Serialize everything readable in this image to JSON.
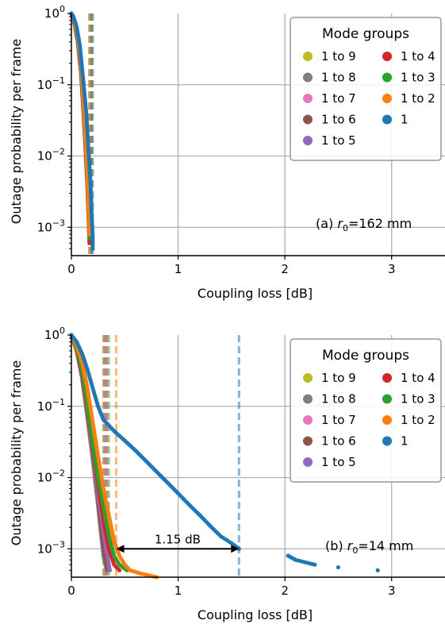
{
  "chart_data": [
    {
      "type": "scatter",
      "panel_label": "(a)",
      "annotation": {
        "prefix": "(a) ",
        "var": "r",
        "sub": "0",
        "suffix": "=162 mm"
      },
      "xlabel": "Coupling loss [dB]",
      "ylabel": "Outage probability per frame",
      "xlim": [
        0,
        3.5
      ],
      "ylim": [
        0.0004,
        1
      ],
      "yscale": "log",
      "grid": true,
      "legend_title": "Mode groups",
      "legend_position": "top-right",
      "x_ticks": [
        "0",
        "1",
        "2",
        "3"
      ],
      "y_ticks": [
        {
          "base": "10",
          "exp": "0",
          "v": 1
        },
        {
          "base": "10",
          "exp": "−1",
          "v": 0.1
        },
        {
          "base": "10",
          "exp": "−2",
          "v": 0.01
        },
        {
          "base": "10",
          "exp": "−3",
          "v": 0.001
        }
      ],
      "series": [
        {
          "name": "1 to 9",
          "color": "#bcbd22",
          "threshold": 0.17,
          "points": [
            [
              0.0,
              1.0
            ],
            [
              0.03,
              0.7
            ],
            [
              0.06,
              0.4
            ],
            [
              0.09,
              0.15
            ],
            [
              0.11,
              0.05
            ],
            [
              0.13,
              0.015
            ],
            [
              0.15,
              0.004
            ],
            [
              0.16,
              0.0015
            ],
            [
              0.17,
              0.0006
            ]
          ]
        },
        {
          "name": "1 to 8",
          "color": "#7f7f7f",
          "threshold": 0.17,
          "points": [
            [
              0.0,
              1.0
            ],
            [
              0.03,
              0.7
            ],
            [
              0.06,
              0.4
            ],
            [
              0.09,
              0.15
            ],
            [
              0.11,
              0.05
            ],
            [
              0.13,
              0.015
            ],
            [
              0.15,
              0.004
            ],
            [
              0.16,
              0.0015
            ],
            [
              0.17,
              0.0006
            ]
          ]
        },
        {
          "name": "1 to 7",
          "color": "#e377c2",
          "threshold": 0.17,
          "points": [
            [
              0.0,
              1.0
            ],
            [
              0.03,
              0.7
            ],
            [
              0.06,
              0.4
            ],
            [
              0.09,
              0.15
            ],
            [
              0.11,
              0.05
            ],
            [
              0.13,
              0.015
            ],
            [
              0.15,
              0.004
            ],
            [
              0.16,
              0.0015
            ],
            [
              0.17,
              0.0006
            ]
          ]
        },
        {
          "name": "1 to 6",
          "color": "#8c564b",
          "threshold": 0.17,
          "points": [
            [
              0.0,
              1.0
            ],
            [
              0.03,
              0.7
            ],
            [
              0.06,
              0.4
            ],
            [
              0.09,
              0.15
            ],
            [
              0.11,
              0.05
            ],
            [
              0.13,
              0.015
            ],
            [
              0.15,
              0.004
            ],
            [
              0.16,
              0.0015
            ],
            [
              0.17,
              0.0006
            ]
          ]
        },
        {
          "name": "1 to 5",
          "color": "#9467bd",
          "threshold": 0.18,
          "points": [
            [
              0.0,
              1.0
            ],
            [
              0.03,
              0.7
            ],
            [
              0.06,
              0.4
            ],
            [
              0.09,
              0.15
            ],
            [
              0.11,
              0.05
            ],
            [
              0.13,
              0.015
            ],
            [
              0.15,
              0.004
            ],
            [
              0.16,
              0.0015
            ],
            [
              0.17,
              0.0006
            ]
          ]
        },
        {
          "name": "1 to 4",
          "color": "#d62728",
          "threshold": 0.18,
          "points": [
            [
              0.0,
              1.0
            ],
            [
              0.03,
              0.72
            ],
            [
              0.06,
              0.42
            ],
            [
              0.09,
              0.16
            ],
            [
              0.11,
              0.05
            ],
            [
              0.13,
              0.015
            ],
            [
              0.15,
              0.004
            ],
            [
              0.16,
              0.0015
            ],
            [
              0.17,
              0.0006
            ]
          ]
        },
        {
          "name": "1 to 3",
          "color": "#2ca02c",
          "threshold": 0.19,
          "points": [
            [
              0.0,
              1.0
            ],
            [
              0.03,
              0.74
            ],
            [
              0.06,
              0.45
            ],
            [
              0.09,
              0.18
            ],
            [
              0.11,
              0.06
            ],
            [
              0.13,
              0.018
            ],
            [
              0.15,
              0.005
            ],
            [
              0.16,
              0.0018
            ],
            [
              0.17,
              0.0007
            ]
          ]
        },
        {
          "name": "1 to 2",
          "color": "#ff7f0e",
          "threshold": 0.19,
          "points": [
            [
              0.0,
              1.0
            ],
            [
              0.03,
              0.76
            ],
            [
              0.06,
              0.48
            ],
            [
              0.09,
              0.2
            ],
            [
              0.11,
              0.07
            ],
            [
              0.13,
              0.02
            ],
            [
              0.15,
              0.006
            ],
            [
              0.16,
              0.002
            ],
            [
              0.17,
              0.0008
            ]
          ]
        },
        {
          "name": "1",
          "color": "#1f77b4",
          "threshold": 0.2,
          "points": [
            [
              0.0,
              1.0
            ],
            [
              0.02,
              0.9
            ],
            [
              0.05,
              0.65
            ],
            [
              0.08,
              0.35
            ],
            [
              0.11,
              0.12
            ],
            [
              0.14,
              0.04
            ],
            [
              0.16,
              0.012
            ],
            [
              0.18,
              0.004
            ],
            [
              0.19,
              0.0015
            ],
            [
              0.2,
              0.0007
            ],
            [
              0.2,
              0.0005
            ]
          ]
        }
      ]
    },
    {
      "type": "scatter",
      "panel_label": "(b)",
      "annotation": {
        "prefix": "(b) ",
        "var": "r",
        "sub": "0",
        "suffix": "=14 mm"
      },
      "xlabel": "Coupling loss [dB]",
      "ylabel": "Outage probability per frame",
      "xlim": [
        0,
        3.5
      ],
      "ylim": [
        0.0004,
        1
      ],
      "yscale": "log",
      "grid": true,
      "legend_title": "Mode groups",
      "legend_position": "top-right",
      "x_ticks": [
        "0",
        "1",
        "2",
        "3"
      ],
      "y_ticks": [
        {
          "base": "10",
          "exp": "0",
          "v": 1
        },
        {
          "base": "10",
          "exp": "−1",
          "v": 0.1
        },
        {
          "base": "10",
          "exp": "−2",
          "v": 0.01
        },
        {
          "base": "10",
          "exp": "−3",
          "v": 0.001
        }
      ],
      "arrow": {
        "x1": 0.42,
        "x2": 1.57,
        "y": 0.001,
        "label": "1.15 dB"
      },
      "series": [
        {
          "name": "1 to 9",
          "color": "#bcbd22",
          "threshold": 0.3,
          "points": [
            [
              0.0,
              1.0
            ],
            [
              0.05,
              0.6
            ],
            [
              0.1,
              0.25
            ],
            [
              0.15,
              0.07
            ],
            [
              0.2,
              0.018
            ],
            [
              0.25,
              0.004
            ],
            [
              0.28,
              0.0015
            ],
            [
              0.3,
              0.0008
            ],
            [
              0.33,
              0.0005
            ]
          ]
        },
        {
          "name": "1 to 8",
          "color": "#7f7f7f",
          "threshold": 0.3,
          "points": [
            [
              0.0,
              1.0
            ],
            [
              0.05,
              0.6
            ],
            [
              0.1,
              0.25
            ],
            [
              0.15,
              0.07
            ],
            [
              0.2,
              0.018
            ],
            [
              0.25,
              0.004
            ],
            [
              0.28,
              0.0015
            ],
            [
              0.3,
              0.0008
            ],
            [
              0.33,
              0.0005
            ]
          ]
        },
        {
          "name": "1 to 7",
          "color": "#e377c2",
          "threshold": 0.31,
          "points": [
            [
              0.0,
              1.0
            ],
            [
              0.05,
              0.6
            ],
            [
              0.1,
              0.26
            ],
            [
              0.15,
              0.075
            ],
            [
              0.2,
              0.02
            ],
            [
              0.25,
              0.005
            ],
            [
              0.28,
              0.0017
            ],
            [
              0.31,
              0.0008
            ],
            [
              0.34,
              0.0005
            ]
          ]
        },
        {
          "name": "1 to 6",
          "color": "#8c564b",
          "threshold": 0.31,
          "points": [
            [
              0.0,
              1.0
            ],
            [
              0.05,
              0.6
            ],
            [
              0.1,
              0.26
            ],
            [
              0.15,
              0.075
            ],
            [
              0.2,
              0.02
            ],
            [
              0.25,
              0.005
            ],
            [
              0.28,
              0.0017
            ],
            [
              0.31,
              0.0008
            ],
            [
              0.34,
              0.0005
            ]
          ]
        },
        {
          "name": "1 to 5",
          "color": "#9467bd",
          "threshold": 0.32,
          "points": [
            [
              0.0,
              1.0
            ],
            [
              0.05,
              0.62
            ],
            [
              0.1,
              0.28
            ],
            [
              0.15,
              0.08
            ],
            [
              0.2,
              0.022
            ],
            [
              0.25,
              0.006
            ],
            [
              0.3,
              0.0018
            ],
            [
              0.33,
              0.0009
            ],
            [
              0.36,
              0.0005
            ]
          ]
        },
        {
          "name": "1 to 4",
          "color": "#d62728",
          "threshold": 0.33,
          "points": [
            [
              0.0,
              1.0
            ],
            [
              0.05,
              0.63
            ],
            [
              0.1,
              0.3
            ],
            [
              0.15,
              0.09
            ],
            [
              0.2,
              0.026
            ],
            [
              0.25,
              0.008
            ],
            [
              0.3,
              0.0025
            ],
            [
              0.35,
              0.001
            ],
            [
              0.4,
              0.0006
            ],
            [
              0.45,
              0.0005
            ]
          ]
        },
        {
          "name": "1 to 3",
          "color": "#2ca02c",
          "threshold": 0.35,
          "points": [
            [
              0.0,
              1.0
            ],
            [
              0.05,
              0.65
            ],
            [
              0.1,
              0.33
            ],
            [
              0.15,
              0.1
            ],
            [
              0.2,
              0.03
            ],
            [
              0.25,
              0.01
            ],
            [
              0.3,
              0.004
            ],
            [
              0.35,
              0.0016
            ],
            [
              0.4,
              0.0008
            ],
            [
              0.45,
              0.0006
            ],
            [
              0.52,
              0.0005
            ]
          ]
        },
        {
          "name": "1 to 2",
          "color": "#ff7f0e",
          "threshold": 0.42,
          "points": [
            [
              0.0,
              1.0
            ],
            [
              0.05,
              0.7
            ],
            [
              0.1,
              0.42
            ],
            [
              0.15,
              0.18
            ],
            [
              0.2,
              0.06
            ],
            [
              0.25,
              0.02
            ],
            [
              0.3,
              0.007
            ],
            [
              0.35,
              0.003
            ],
            [
              0.4,
              0.0013
            ],
            [
              0.45,
              0.0008
            ],
            [
              0.5,
              0.0006
            ],
            [
              0.55,
              0.0005
            ],
            [
              0.65,
              0.00045
            ],
            [
              0.8,
              0.0004
            ]
          ]
        },
        {
          "name": "1",
          "color": "#1f77b4",
          "threshold": 1.57,
          "points": [
            [
              0.0,
              1.0
            ],
            [
              0.05,
              0.8
            ],
            [
              0.1,
              0.55
            ],
            [
              0.15,
              0.33
            ],
            [
              0.2,
              0.18
            ],
            [
              0.25,
              0.1
            ],
            [
              0.3,
              0.065
            ],
            [
              0.4,
              0.045
            ],
            [
              0.5,
              0.033
            ],
            [
              0.6,
              0.024
            ],
            [
              0.7,
              0.017
            ],
            [
              0.8,
              0.012
            ],
            [
              0.9,
              0.0085
            ],
            [
              1.0,
              0.006
            ],
            [
              1.1,
              0.0042
            ],
            [
              1.2,
              0.003
            ],
            [
              1.3,
              0.0021
            ],
            [
              1.4,
              0.0015
            ],
            [
              1.5,
              0.0012
            ],
            [
              1.57,
              0.001
            ],
            [
              2.03,
              0.0008
            ],
            [
              2.1,
              0.0007
            ],
            [
              2.28,
              0.0006
            ],
            [
              2.5,
              0.00055
            ],
            [
              2.87,
              0.0005
            ]
          ]
        }
      ]
    }
  ]
}
